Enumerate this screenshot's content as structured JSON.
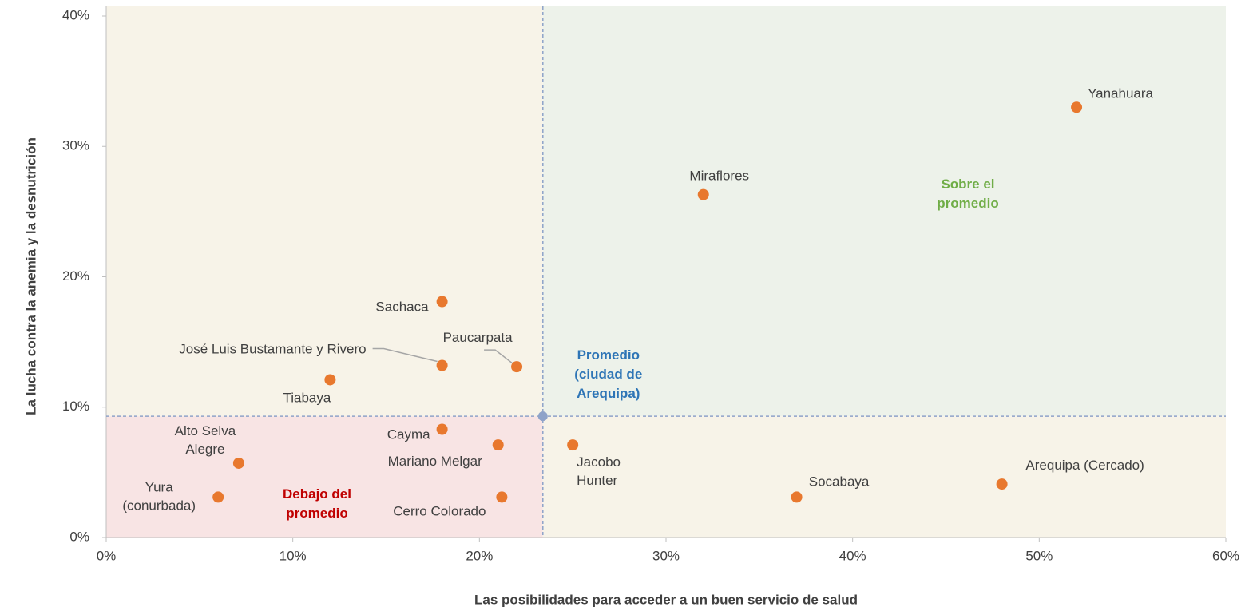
{
  "chart_data": {
    "type": "scatter",
    "x_label": "Las posibilidades para acceder a un buen servicio de salud",
    "y_label": "La lucha contra la anemia y la desnutrición",
    "labels": [
      [
        "Yanahuara"
      ],
      [
        "Miraflores"
      ],
      [
        "Sachaca"
      ],
      [
        "José Luis Bustamante y Rivero"
      ],
      [
        "Paucarpata"
      ],
      [
        "Tiabaya"
      ],
      [
        "Cayma"
      ],
      [
        "Mariano Melgar"
      ],
      [
        "Alto Selva",
        "Alegre"
      ],
      [
        "Yura",
        "(conurbada)"
      ],
      [
        "Cerro Colorado"
      ],
      [
        "Jacobo",
        "Hunter"
      ],
      [
        "Socabaya"
      ],
      [
        "Arequipa (Cercado)"
      ]
    ],
    "x": [
      52,
      32,
      18,
      18,
      22,
      12,
      18,
      21,
      7.1,
      6,
      21.2,
      25,
      37,
      48
    ],
    "y": [
      33,
      26.3,
      18.1,
      13.2,
      13.1,
      12.1,
      8.3,
      7.1,
      5.7,
      3.1,
      3.1,
      7.1,
      3.1,
      4.1
    ],
    "color": "#e8782e",
    "average": {
      "x": 23.4,
      "y": 9.3,
      "color": "#8ea3c9",
      "label": [
        "Promedio",
        "(ciudad de",
        "Arequipa)"
      ],
      "label_color": "#2e75b6"
    },
    "above_label": {
      "text": [
        "Sobre el",
        "promedio"
      ],
      "color": "#70ad47"
    },
    "below_label": {
      "text": [
        "Debajo del",
        "promedio"
      ],
      "color": "#c00000"
    },
    "quadrant_colors": {
      "top_left": "#f7f3e8",
      "top_right": "#edf2ea",
      "bottom_left": "#f8e4e4",
      "bottom_right": "#f7f3e8"
    },
    "xlim": [
      0,
      60
    ],
    "ylim": [
      0,
      40
    ],
    "xticks": [
      {
        "value": 0,
        "label": "0%"
      },
      {
        "value": 10,
        "label": "10%"
      },
      {
        "value": 20,
        "label": "20%"
      },
      {
        "value": 30,
        "label": "30%"
      },
      {
        "value": 40,
        "label": "40%"
      },
      {
        "value": 50,
        "label": "50%"
      },
      {
        "value": 60,
        "label": "60%"
      }
    ],
    "yticks": [
      {
        "value": 0,
        "label": "0%"
      },
      {
        "value": 10,
        "label": "10%"
      },
      {
        "value": 20,
        "label": "20%"
      },
      {
        "value": 30,
        "label": "30%"
      },
      {
        "value": 40,
        "label": "40%"
      }
    ]
  }
}
